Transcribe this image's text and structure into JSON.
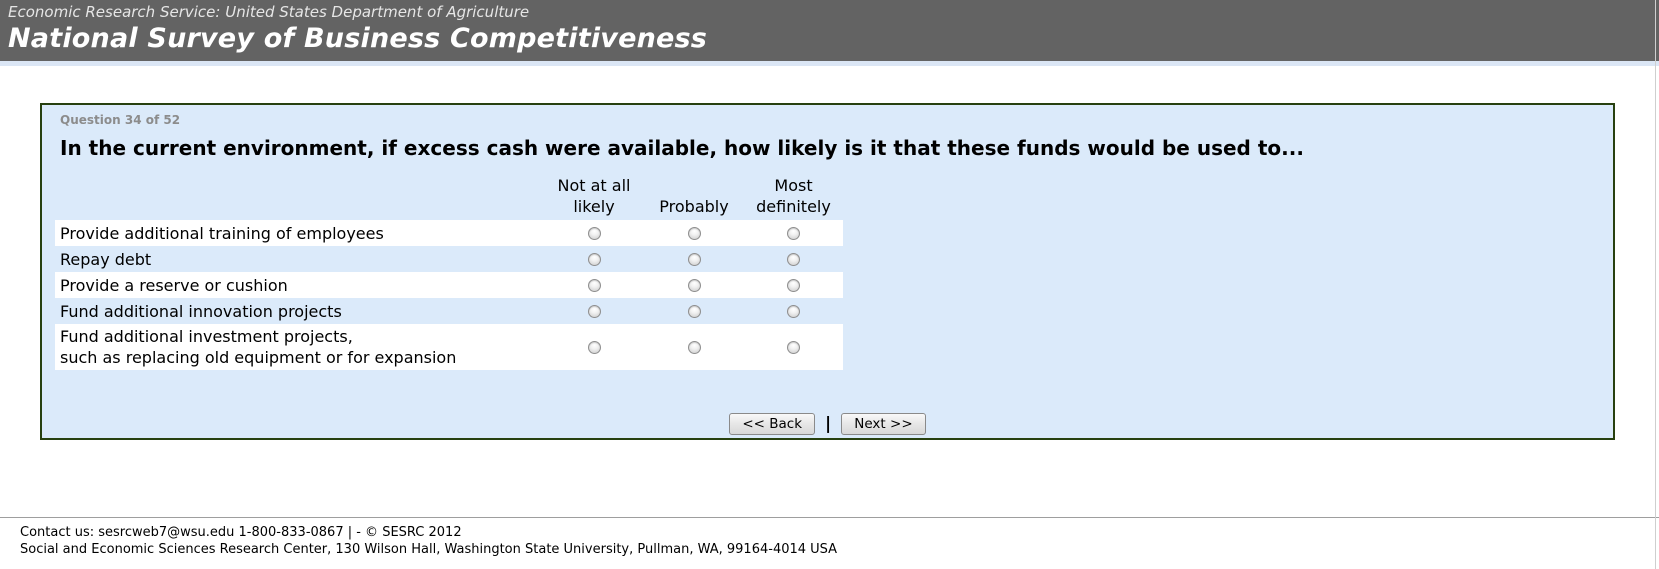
{
  "header": {
    "subtitle": "Economic Research Service: United States Department of Agriculture",
    "title": "National Survey of Business Competitiveness"
  },
  "question": {
    "progress": "Question 34 of 52",
    "text": "In the current environment, if excess cash were available, how likely is it that these funds would be used to..."
  },
  "matrix": {
    "columns": [
      "Not at all likely",
      "Probably",
      "Most definitely"
    ],
    "rows": [
      {
        "label": "Provide additional training of employees"
      },
      {
        "label": "Repay debt"
      },
      {
        "label": "Provide a reserve or cushion"
      },
      {
        "label": "Fund additional innovation projects"
      },
      {
        "label": "Fund additional investment projects,\nsuch as replacing old equipment or for expansion"
      }
    ],
    "radio_state": "all unselected"
  },
  "nav": {
    "back_label": "<< Back",
    "separator": "|",
    "next_label": "Next >>"
  },
  "footer": {
    "line1": "Contact us: sesrcweb7@wsu.edu 1-800-833-0867 | - © SESRC 2012",
    "line2": "Social and Economic Sciences Research Center, 130 Wilson Hall, Washington State University, Pullman, WA, 99164-4014 USA"
  },
  "colors": {
    "header_bg": "#636363",
    "box_bg": "#dbeafa",
    "box_border": "#27400f",
    "strip": "#dbe6f5"
  }
}
